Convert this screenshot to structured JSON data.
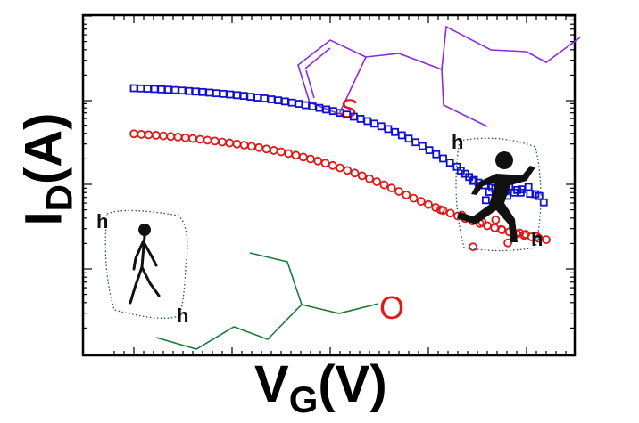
{
  "chart_data": {
    "type": "scatter",
    "title": "",
    "xlabel": {
      "main": "V",
      "sub": "G",
      "unit": "(V)"
    },
    "ylabel": {
      "main": "I",
      "sub": "D",
      "unit": "(A)"
    },
    "xlim": [
      0,
      100
    ],
    "ylim": [
      0,
      100
    ],
    "log_y": true,
    "grid": false,
    "series": [
      {
        "marker": "square",
        "color": "#1010d0",
        "x": [
          10,
          11.4,
          12.8,
          14.2,
          15.6,
          17,
          18.4,
          19.8,
          21.2,
          22.6,
          24,
          25.4,
          26.8,
          28.2,
          29.6,
          31,
          32.4,
          33.8,
          35.2,
          36.6,
          38,
          39.4,
          40.8,
          42.2,
          43.6,
          45,
          46.4,
          47.8,
          49.2,
          50.6,
          52,
          53.4,
          54.8,
          56.2,
          57.6,
          59,
          60.4,
          61.8,
          63.2,
          64.6,
          66,
          67.4,
          68.8,
          70.2,
          71.6,
          73,
          74.4,
          75.8,
          76.6,
          77.5,
          78.3,
          79.3,
          80.2,
          81.5,
          83,
          84.3,
          85.7,
          87.5,
          89,
          90.4,
          91.8,
          93.5,
          79,
          82.4,
          84.8,
          86.5,
          88.1,
          90.7,
          92.6,
          81.7,
          83.6,
          86.1,
          88.8
        ],
        "y": [
          80,
          79.8,
          79.6,
          79.3,
          79,
          78.7,
          78.4,
          78,
          77.6,
          77.2,
          76.8,
          76.3,
          75.8,
          75.3,
          74.8,
          74.2,
          73.6,
          72.9,
          72.2,
          71.5,
          70.7,
          69.9,
          69,
          68,
          67,
          65.9,
          64.8,
          63.6,
          62.3,
          61,
          59.5,
          58,
          56.3,
          54.5,
          52.6,
          50.5,
          48.3,
          46,
          43.5,
          40.8,
          38,
          35,
          31.8,
          28.4,
          25,
          21.5,
          18,
          14.6,
          11.5,
          8.8,
          6.1,
          3.7,
          1.4,
          -0.8,
          -2.8,
          -4.5,
          -5.8,
          -6.9,
          -4.2,
          -2.2,
          -8.2,
          -15,
          2.8,
          -6.3,
          1.9,
          -1.9,
          -4.7,
          -7.9,
          -9.8,
          -13.2,
          -3.6,
          -9.6,
          -6.9
        ]
      },
      {
        "marker": "circle",
        "color": "#e01818",
        "x": [
          10,
          11.5,
          13,
          14.5,
          16,
          17.5,
          19,
          20.5,
          22,
          23.5,
          25,
          26.5,
          28,
          29.5,
          31,
          32.5,
          34,
          35.5,
          37,
          38.5,
          40,
          41.5,
          43,
          44.5,
          46,
          47.5,
          49,
          50.5,
          52,
          53.5,
          55,
          56.5,
          58,
          59.5,
          61,
          62.5,
          64,
          65.5,
          67,
          68.5,
          70,
          71.5,
          73,
          74.5,
          76,
          77.5,
          79,
          80.5,
          82,
          83.5,
          85,
          86.5,
          88,
          89.5,
          91,
          92.5,
          94,
          72.5,
          76.8,
          81,
          84.9,
          88.6,
          92.1,
          79.1,
          86.2,
          83.7,
          89.8
        ],
        "y": [
          42,
          41.6,
          41.2,
          40.8,
          40.3,
          39.8,
          39.3,
          38.7,
          38.1,
          37.4,
          36.7,
          36,
          35.2,
          34.4,
          33.5,
          32.6,
          31.6,
          30.5,
          29.4,
          28.2,
          27,
          25.6,
          24.2,
          22.7,
          21.1,
          19.4,
          17.6,
          15.7,
          13.7,
          11.6,
          9.4,
          7.1,
          4.7,
          2.2,
          -0.4,
          -3.1,
          -5.9,
          -8.8,
          -11.6,
          -14.2,
          -16.8,
          -19.3,
          -21.7,
          -24,
          -26.3,
          -28.4,
          -30.5,
          -32.5,
          -34.4,
          -36.2,
          -37.9,
          -39.5,
          -41,
          -42.4,
          -43.7,
          -44.9,
          -46,
          -21.1,
          -25.6,
          -31.5,
          -37.5,
          -40.4,
          -43.4,
          -52,
          -48.7,
          -29.5,
          -41.5
        ]
      }
    ],
    "annotations": {
      "thiophene_atom": "S",
      "oxygen_atom": "O",
      "h_marks": [
        "h",
        "h",
        "h",
        "h"
      ]
    }
  }
}
